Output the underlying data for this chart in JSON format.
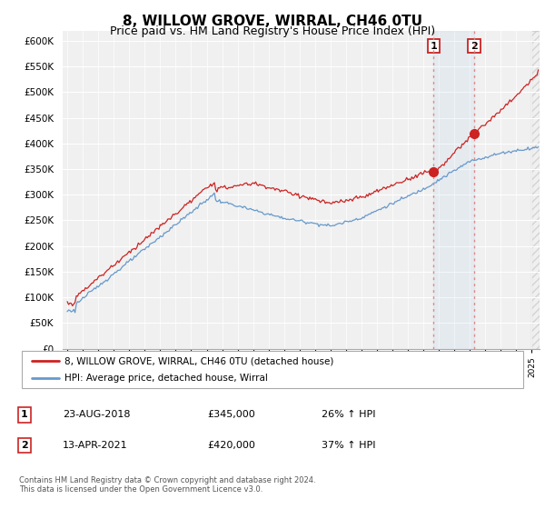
{
  "title": "8, WILLOW GROVE, WIRRAL, CH46 0TU",
  "subtitle": "Price paid vs. HM Land Registry's House Price Index (HPI)",
  "title_fontsize": 11,
  "subtitle_fontsize": 9,
  "yticks": [
    0,
    50000,
    100000,
    150000,
    200000,
    250000,
    300000,
    350000,
    400000,
    450000,
    500000,
    550000,
    600000
  ],
  "xlim_start": 1994.7,
  "xlim_end": 2025.5,
  "ylim_min": 0,
  "ylim_max": 620000,
  "hpi_color": "#6699cc",
  "price_color": "#cc2222",
  "vline_color": "#dd8888",
  "sale1_x": 2018.648,
  "sale1_y": 345000,
  "sale2_x": 2021.28,
  "sale2_y": 420000,
  "legend1_text": "8, WILLOW GROVE, WIRRAL, CH46 0TU (detached house)",
  "legend2_text": "HPI: Average price, detached house, Wirral",
  "table_row1": [
    "1",
    "23-AUG-2018",
    "£345,000",
    "26% ↑ HPI"
  ],
  "table_row2": [
    "2",
    "13-APR-2021",
    "£420,000",
    "37% ↑ HPI"
  ],
  "footnote": "Contains HM Land Registry data © Crown copyright and database right 2024.\nThis data is licensed under the Open Government Licence v3.0.",
  "background_color": "#ffffff",
  "plot_bg_color": "#f0f0f0"
}
